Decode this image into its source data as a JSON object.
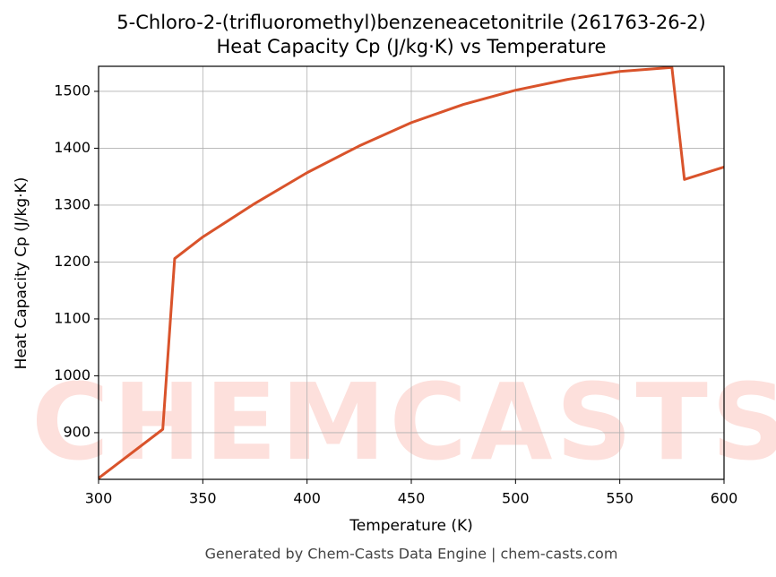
{
  "chart_data": {
    "type": "line",
    "title": "5-Chloro-2-(trifluoromethyl)benzeneacetonitrile (261763-26-2)",
    "subtitle": "Heat Capacity Cp (J/kg·K) vs Temperature",
    "x_label": "Temperature (K)",
    "y_label": "Heat Capacity Cp (J/kg·K)",
    "footer": "Generated by Chem-Casts Data Engine | chem-casts.com",
    "watermark": "CHEMCASTS",
    "x": [
      300,
      330.8,
      336.5,
      350,
      375,
      400,
      425,
      450,
      475,
      500,
      525,
      550,
      575,
      581,
      600
    ],
    "series": [
      {
        "name": "Heat Capacity Cp",
        "color": "#d9532b",
        "values": [
          820,
          906,
          1206,
          1244,
          1303,
          1357,
          1404,
          1445,
          1477,
          1502,
          1521,
          1535,
          1542,
          1345,
          1367
        ]
      }
    ],
    "xlim": [
      300,
      600
    ],
    "ylim": [
      818,
      1544
    ],
    "xticks": [
      300,
      350,
      400,
      450,
      500,
      550,
      600
    ],
    "yticks": [
      900,
      1000,
      1100,
      1200,
      1300,
      1400,
      1500
    ],
    "grid": true
  }
}
